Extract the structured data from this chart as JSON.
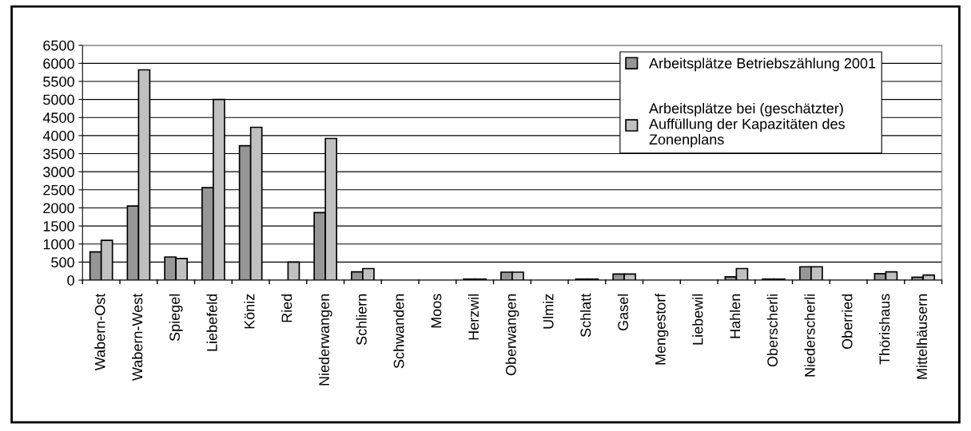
{
  "chart_data": {
    "type": "bar",
    "categories": [
      "Wabern-Ost",
      "Wabern-West",
      "Spiegel",
      "Liebefeld",
      "Köniz",
      "Ried",
      "Niederwangen",
      "Schliern",
      "Schwanden",
      "Moos",
      "Herzwil",
      "Oberwangen",
      "Ulmiz",
      "Schlatt",
      "Gasel",
      "Mengestorf",
      "Liebewil",
      "Hahlen",
      "Oberscherli",
      "Niederscherli",
      "Oberried",
      "Thörishaus",
      "Mittelhäusern"
    ],
    "series": [
      {
        "name": "Arbeitsplätze Betriebszählung 2001",
        "color": "#969696",
        "values": [
          780,
          2050,
          640,
          2560,
          3720,
          null,
          1870,
          230,
          null,
          null,
          30,
          220,
          null,
          30,
          170,
          null,
          null,
          90,
          30,
          370,
          null,
          180,
          80
        ]
      },
      {
        "name": "Arbeitsplätze bei (geschätzter)\nAuffüllung der Kapazitäten des\nZonenplans",
        "color": "#c0c0c0",
        "values": [
          1100,
          5820,
          600,
          5000,
          4230,
          500,
          3920,
          320,
          null,
          null,
          30,
          220,
          null,
          30,
          170,
          null,
          null,
          320,
          30,
          370,
          null,
          230,
          140
        ]
      }
    ],
    "ylim": [
      0,
      6500
    ],
    "yticks": [
      0,
      500,
      1000,
      1500,
      2000,
      2500,
      3000,
      3500,
      4000,
      4500,
      5000,
      5500,
      6000,
      6500
    ],
    "grid": "y",
    "legend": "top right"
  }
}
